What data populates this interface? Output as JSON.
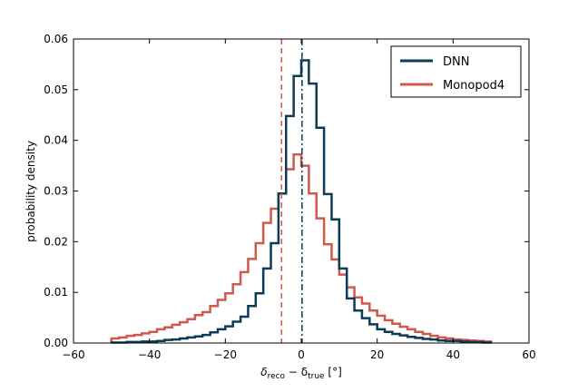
{
  "chart_data": {
    "type": "line",
    "xlabel_parts": [
      "δ",
      "reco",
      " − δ",
      "true",
      "  [°]"
    ],
    "ylabel": "probability density",
    "xlim": [
      -60,
      60
    ],
    "ylim": [
      0,
      0.06
    ],
    "xticks": [
      -60,
      -40,
      -20,
      0,
      20,
      40,
      60
    ],
    "xtick_labels": [
      "−60",
      "−40",
      "−20",
      "0",
      "20",
      "40",
      "60"
    ],
    "yticks": [
      0,
      0.01,
      0.02,
      0.03,
      0.04,
      0.05,
      0.06
    ],
    "ytick_labels": [
      "0.00",
      "0.01",
      "0.02",
      "0.03",
      "0.04",
      "0.05",
      "0.06"
    ],
    "grid": false,
    "legend_position": "top-right",
    "bin_edges": [
      -50,
      -48,
      -46,
      -44,
      -42,
      -40,
      -38,
      -36,
      -34,
      -32,
      -30,
      -28,
      -26,
      -24,
      -22,
      -20,
      -18,
      -16,
      -14,
      -12,
      -10,
      -8,
      -6,
      -4,
      -2,
      0,
      2,
      4,
      6,
      8,
      10,
      12,
      14,
      16,
      18,
      20,
      22,
      24,
      26,
      28,
      30,
      32,
      34,
      36,
      38,
      40,
      42,
      44,
      46,
      48,
      50
    ],
    "series": [
      {
        "name": "DNN",
        "color": "#0b3b55",
        "values": [
          0.0001,
          0.0001,
          0.0002,
          0.0002,
          0.0003,
          0.0003,
          0.0004,
          0.0006,
          0.0007,
          0.0009,
          0.0011,
          0.0013,
          0.0016,
          0.0021,
          0.0027,
          0.0033,
          0.0042,
          0.0052,
          0.0073,
          0.0098,
          0.0147,
          0.0197,
          0.0295,
          0.0448,
          0.0527,
          0.0558,
          0.0512,
          0.0425,
          0.0294,
          0.0244,
          0.0147,
          0.0088,
          0.0064,
          0.0049,
          0.0037,
          0.0027,
          0.0022,
          0.0018,
          0.0015,
          0.0012,
          0.001,
          0.0008,
          0.0007,
          0.0005,
          0.0004,
          0.0004,
          0.0003,
          0.0002,
          0.0002,
          0.0001
        ],
        "marker_line": {
          "style": "dash-dot",
          "x": 0.2
        }
      },
      {
        "name": "Monopod4",
        "color": "#cf5a4c",
        "values": [
          0.0009,
          0.0011,
          0.0014,
          0.0016,
          0.0019,
          0.0022,
          0.0027,
          0.0031,
          0.0036,
          0.0041,
          0.0047,
          0.0055,
          0.0061,
          0.0073,
          0.0085,
          0.0098,
          0.0116,
          0.014,
          0.0166,
          0.0197,
          0.0237,
          0.0265,
          0.0295,
          0.0343,
          0.0372,
          0.035,
          0.0295,
          0.0246,
          0.0195,
          0.0165,
          0.0135,
          0.011,
          0.009,
          0.0078,
          0.0064,
          0.0054,
          0.0045,
          0.0038,
          0.0032,
          0.0027,
          0.0022,
          0.0018,
          0.0014,
          0.0011,
          0.0009,
          0.0007,
          0.0006,
          0.0005,
          0.0004,
          0.0003
        ],
        "marker_line": {
          "style": "dashed",
          "x": -5.2
        }
      }
    ]
  }
}
